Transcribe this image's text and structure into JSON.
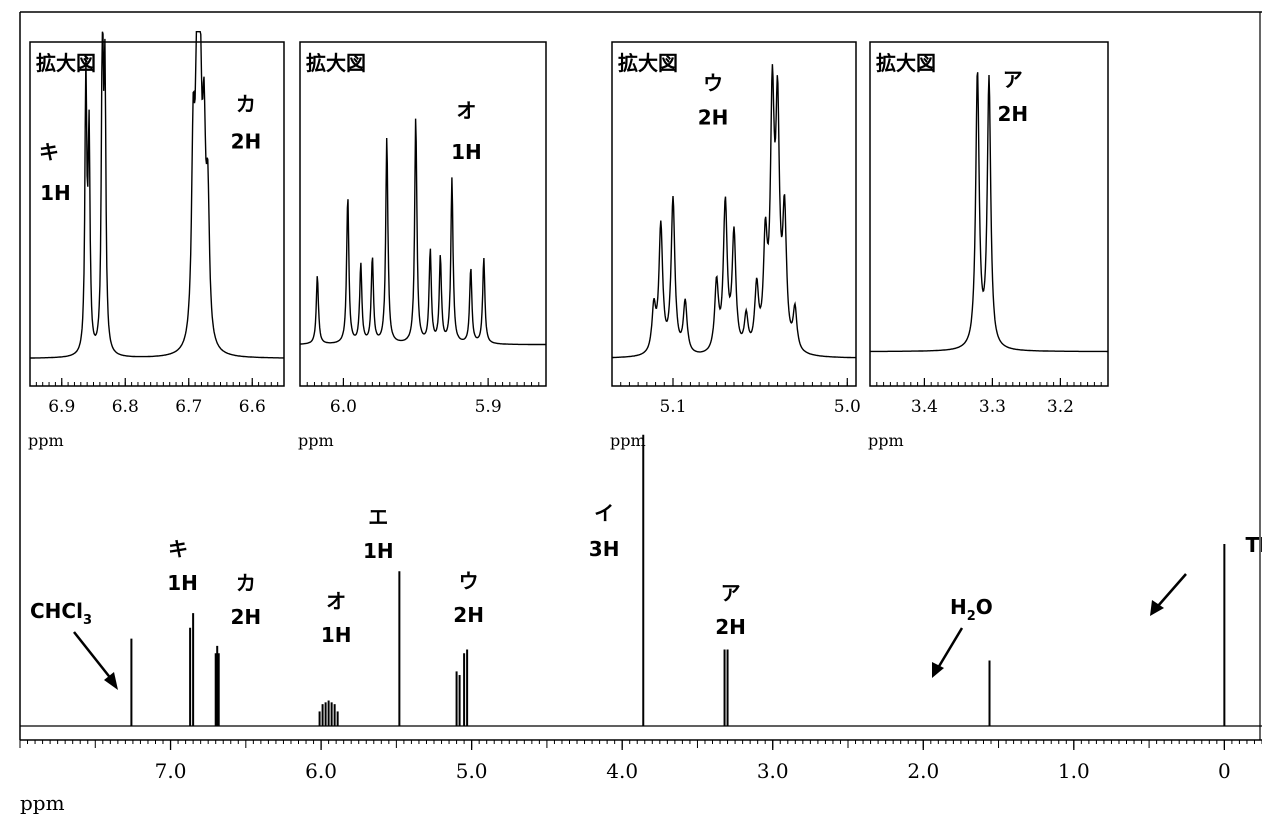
{
  "chart_data": {
    "type": "line",
    "chart_kind": "1H NMR spectrum",
    "main": {
      "xlabel": "ppm",
      "x_reversed": true,
      "xlim": [
        8.0,
        -0.25
      ],
      "ticks": [
        {
          "v": 7.0,
          "label": "7.0"
        },
        {
          "v": 6.0,
          "label": "6.0"
        },
        {
          "v": 5.0,
          "label": "5.0"
        },
        {
          "v": 4.0,
          "label": "4.0"
        },
        {
          "v": 3.0,
          "label": "3.0"
        },
        {
          "v": 2.0,
          "label": "2.0"
        },
        {
          "v": 1.0,
          "label": "1.0"
        },
        {
          "v": 0.0,
          "label": "0"
        }
      ],
      "minor_step": 0.05,
      "peaks": [
        {
          "shift": 7.26,
          "h": 0.48
        },
        {
          "shift": 6.87,
          "h": 0.54
        },
        {
          "shift": 6.85,
          "h": 0.62
        },
        {
          "shift": 6.7,
          "h": 0.4
        },
        {
          "shift": 6.69,
          "h": 0.44
        },
        {
          "shift": 6.68,
          "h": 0.4
        },
        {
          "shift": 6.01,
          "h": 0.08
        },
        {
          "shift": 5.99,
          "h": 0.12
        },
        {
          "shift": 5.97,
          "h": 0.13
        },
        {
          "shift": 5.95,
          "h": 0.14
        },
        {
          "shift": 5.93,
          "h": 0.13
        },
        {
          "shift": 5.91,
          "h": 0.12
        },
        {
          "shift": 5.89,
          "h": 0.08
        },
        {
          "shift": 5.48,
          "h": 0.85
        },
        {
          "shift": 5.1,
          "h": 0.3
        },
        {
          "shift": 5.08,
          "h": 0.28
        },
        {
          "shift": 5.05,
          "h": 0.4
        },
        {
          "shift": 5.03,
          "h": 0.42
        },
        {
          "shift": 3.86,
          "h": 1.6
        },
        {
          "shift": 3.32,
          "h": 0.42
        },
        {
          "shift": 3.3,
          "h": 0.42
        },
        {
          "shift": 1.56,
          "h": 0.36
        },
        {
          "shift": 0.0,
          "h": 1.0
        }
      ],
      "labels": [
        {
          "text": "キ",
          "x": 6.95,
          "row": 1
        },
        {
          "text": "1H",
          "x": 6.92,
          "row": 2
        },
        {
          "text": "カ",
          "x": 6.5,
          "row": 3
        },
        {
          "text": "2H",
          "x": 6.5,
          "row": 4
        },
        {
          "text": "オ",
          "x": 5.9,
          "row": 5
        },
        {
          "text": "1H",
          "x": 5.9,
          "row": 6
        },
        {
          "text": "エ",
          "x": 5.62,
          "row": 0
        },
        {
          "text": "1H",
          "x": 5.62,
          "row": 1
        },
        {
          "text": "ウ",
          "x": 5.02,
          "row": 3
        },
        {
          "text": "2H",
          "x": 5.02,
          "row": 4
        },
        {
          "text": "イ",
          "x": 4.12,
          "row": 0
        },
        {
          "text": "3H",
          "x": 4.12,
          "row": 1
        },
        {
          "text": "ア",
          "x": 3.28,
          "row": 4
        },
        {
          "text": "2H",
          "x": 3.28,
          "row": 5
        },
        {
          "text": "TMS",
          "x": -0.3,
          "row": 1
        }
      ],
      "chcl3_label": "CHCl",
      "chcl3_sub": "3",
      "h2o_label": "H",
      "h2o_sub": "2",
      "h2o_label_end": "O"
    },
    "insets": [
      {
        "title": "拡大図",
        "xlabel": "ppm",
        "xlim": [
          6.95,
          6.55
        ],
        "ticks": [
          {
            "v": 6.9,
            "label": "6.9"
          },
          {
            "v": 6.8,
            "label": "6.8"
          },
          {
            "v": 6.7,
            "label": "6.7"
          },
          {
            "v": 6.6,
            "label": "6.6"
          }
        ],
        "baseline": 0.92,
        "peaks": [
          {
            "shift": 6.862,
            "h": 0.8,
            "w": 0.0018
          },
          {
            "shift": 6.857,
            "h": 0.62,
            "w": 0.0018
          },
          {
            "shift": 6.836,
            "h": 0.96,
            "w": 0.0018
          },
          {
            "shift": 6.832,
            "h": 0.76,
            "w": 0.0018
          },
          {
            "shift": 6.693,
            "h": 0.56,
            "w": 0.003
          },
          {
            "shift": 6.687,
            "h": 0.72,
            "w": 0.003
          },
          {
            "shift": 6.682,
            "h": 0.66,
            "w": 0.003
          },
          {
            "shift": 6.676,
            "h": 0.54,
            "w": 0.003
          },
          {
            "shift": 6.67,
            "h": 0.4,
            "w": 0.003
          }
        ],
        "labels": [
          {
            "text": "キ",
            "x": 6.92,
            "y": 0.34
          },
          {
            "text": "1H",
            "x": 6.91,
            "y": 0.46
          },
          {
            "text": "カ",
            "x": 6.61,
            "y": 0.2
          },
          {
            "text": "2H",
            "x": 6.61,
            "y": 0.31
          }
        ]
      },
      {
        "title": "拡大図",
        "xlabel": "ppm",
        "xlim": [
          6.03,
          5.86
        ],
        "ticks": [
          {
            "v": 6.0,
            "label": "6.0"
          },
          {
            "v": 5.9,
            "label": "5.9"
          }
        ],
        "baseline": 0.88,
        "peaks": [
          {
            "shift": 6.018,
            "h": 0.2,
            "w": 0.0009
          },
          {
            "shift": 5.997,
            "h": 0.43,
            "w": 0.0009
          },
          {
            "shift": 5.988,
            "h": 0.23,
            "w": 0.0009
          },
          {
            "shift": 5.98,
            "h": 0.25,
            "w": 0.0009
          },
          {
            "shift": 5.97,
            "h": 0.6,
            "w": 0.0009
          },
          {
            "shift": 5.95,
            "h": 0.66,
            "w": 0.0009
          },
          {
            "shift": 5.94,
            "h": 0.27,
            "w": 0.0009
          },
          {
            "shift": 5.933,
            "h": 0.25,
            "w": 0.0009
          },
          {
            "shift": 5.925,
            "h": 0.48,
            "w": 0.0009
          },
          {
            "shift": 5.903,
            "h": 0.25,
            "w": 0.0009
          },
          {
            "shift": 5.912,
            "h": 0.22,
            "w": 0.0009
          }
        ],
        "labels": [
          {
            "text": "オ",
            "x": 5.915,
            "y": 0.22
          },
          {
            "text": "1H",
            "x": 5.915,
            "y": 0.34
          }
        ]
      },
      {
        "title": "拡大図",
        "xlabel": "ppm",
        "xlim": [
          5.135,
          4.995
        ],
        "ticks": [
          {
            "v": 5.1,
            "label": "5.1"
          },
          {
            "v": 5.0,
            "label": "5.0"
          }
        ],
        "baseline": 0.92,
        "peaks": [
          {
            "shift": 5.107,
            "h": 0.37,
            "w": 0.0013
          },
          {
            "shift": 5.1,
            "h": 0.45,
            "w": 0.0013
          },
          {
            "shift": 5.093,
            "h": 0.15,
            "w": 0.0013
          },
          {
            "shift": 5.111,
            "h": 0.13,
            "w": 0.0013
          },
          {
            "shift": 5.075,
            "h": 0.2,
            "w": 0.0013
          },
          {
            "shift": 5.07,
            "h": 0.43,
            "w": 0.0013
          },
          {
            "shift": 5.065,
            "h": 0.34,
            "w": 0.0013
          },
          {
            "shift": 5.058,
            "h": 0.1,
            "w": 0.0013
          },
          {
            "shift": 5.052,
            "h": 0.18,
            "w": 0.0013
          },
          {
            "shift": 5.047,
            "h": 0.3,
            "w": 0.0013
          },
          {
            "shift": 5.043,
            "h": 0.7,
            "w": 0.0013
          },
          {
            "shift": 5.04,
            "h": 0.66,
            "w": 0.0013
          },
          {
            "shift": 5.036,
            "h": 0.38,
            "w": 0.0013
          },
          {
            "shift": 5.03,
            "h": 0.12,
            "w": 0.0013
          }
        ],
        "labels": [
          {
            "text": "ウ",
            "x": 5.077,
            "y": 0.14
          },
          {
            "text": "2H",
            "x": 5.077,
            "y": 0.24
          }
        ]
      },
      {
        "title": "拡大図",
        "xlabel": "ppm",
        "xlim": [
          3.48,
          3.13
        ],
        "ticks": [
          {
            "v": 3.4,
            "label": "3.4"
          },
          {
            "v": 3.3,
            "label": "3.3"
          },
          {
            "v": 3.2,
            "label": "3.2"
          }
        ],
        "baseline": 0.9,
        "peaks": [
          {
            "shift": 3.322,
            "h": 0.8,
            "w": 0.003
          },
          {
            "shift": 3.305,
            "h": 0.78,
            "w": 0.003
          }
        ],
        "labels": [
          {
            "text": "ア",
            "x": 3.27,
            "y": 0.13
          },
          {
            "text": "2H",
            "x": 3.27,
            "y": 0.23
          }
        ]
      }
    ]
  }
}
